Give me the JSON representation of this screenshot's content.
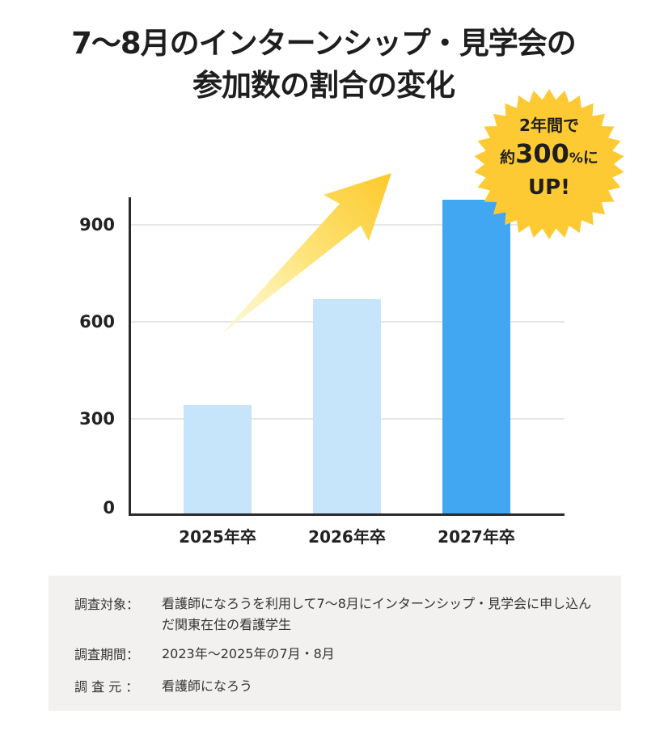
{
  "title": {
    "line1": "7〜8月のインターンシップ・見学会の",
    "line2": "参加数の割合の変化"
  },
  "badge": {
    "line1": "2年間で",
    "line2_prefix": "約",
    "line2_number": "300",
    "line2_unit": "%",
    "line2_suffix": "に",
    "line3": "UP!",
    "color": "#fdca34"
  },
  "chart_data": {
    "type": "bar",
    "title": "7〜8月のインターンシップ・見学会の参加数の割合の変化",
    "categories": [
      "2025年卒",
      "2026年卒",
      "2027年卒"
    ],
    "values": [
      340,
      670,
      980
    ],
    "xlabel": "",
    "ylabel": "",
    "ylim": [
      0,
      980
    ],
    "yticks": [
      0,
      300,
      600,
      900
    ],
    "grid": true,
    "legend": null,
    "bar_colors": [
      "#c6e4fa",
      "#c6e4fa",
      "#42a7f3"
    ],
    "annotations": [
      "upward yellow arrow",
      "2年間で約300%にUP!"
    ]
  },
  "axis": {
    "yticks": [
      "900",
      "600",
      "300",
      "0"
    ],
    "xlabels": [
      "2025年卒",
      "2026年卒",
      "2027年卒"
    ]
  },
  "notes": [
    {
      "label": "調査対象：",
      "value": "看護師になろうを利用して7〜8月にインターンシップ・見学会に申し込んだ関東在住の看護学生"
    },
    {
      "label": "調査期間：",
      "value": "2023年〜2025年の7月・8月"
    },
    {
      "label": "調 査 元 ：",
      "value": "看護師になろう"
    }
  ]
}
